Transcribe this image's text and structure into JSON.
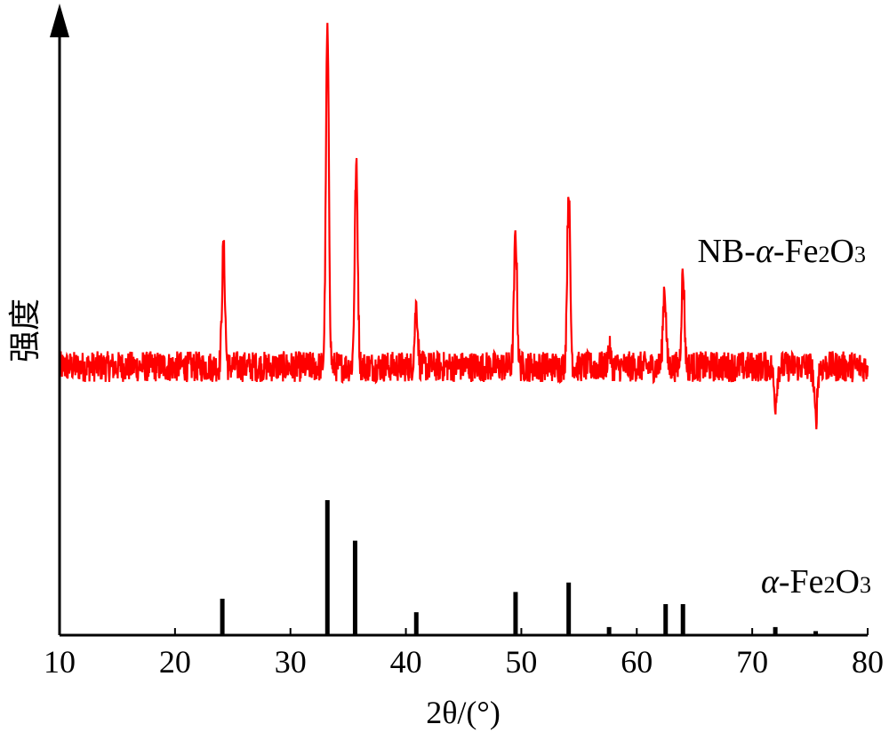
{
  "chart_data": {
    "type": "line",
    "title": "",
    "xlabel": "2θ/(°)",
    "ylabel": "强度",
    "xlim": [
      10,
      80
    ],
    "xticks": [
      "10",
      "20",
      "30",
      "40",
      "50",
      "60",
      "70",
      "80"
    ],
    "y_ticks_shown": false,
    "grid": false,
    "legend": "none",
    "series": [
      {
        "name": "NB-α-Fe2O3",
        "label_parts": {
          "prefix": "NB-",
          "alpha": "α",
          "fe": "-Fe",
          "sub1": "2",
          "o": "O",
          "sub2": "3"
        },
        "color": "#ff0000",
        "style": "noisy-line",
        "baseline_intensity": 0.24,
        "peaks": [
          {
            "x": 24.2,
            "intensity": 0.51
          },
          {
            "x": 33.2,
            "intensity": 1.0
          },
          {
            "x": 35.7,
            "intensity": 0.69
          },
          {
            "x": 40.9,
            "intensity": 0.38
          },
          {
            "x": 49.5,
            "intensity": 0.54
          },
          {
            "x": 54.1,
            "intensity": 0.64
          },
          {
            "x": 57.6,
            "intensity": 0.28
          },
          {
            "x": 62.4,
            "intensity": 0.42
          },
          {
            "x": 64.0,
            "intensity": 0.45
          },
          {
            "x": 72.0,
            "intensity": 0.16
          },
          {
            "x": 75.5,
            "intensity": 0.12
          }
        ]
      },
      {
        "name": "α-Fe2O3",
        "label_parts": {
          "prefix": "",
          "alpha": "α",
          "fe": "-Fe",
          "sub1": "2",
          "o": "O",
          "sub2": "3"
        },
        "color": "#000000",
        "style": "sticks",
        "peaks": [
          {
            "x": 24.1,
            "intensity": 0.27
          },
          {
            "x": 33.2,
            "intensity": 1.0
          },
          {
            "x": 35.6,
            "intensity": 0.7
          },
          {
            "x": 40.9,
            "intensity": 0.17
          },
          {
            "x": 49.5,
            "intensity": 0.32
          },
          {
            "x": 54.1,
            "intensity": 0.39
          },
          {
            "x": 57.6,
            "intensity": 0.06
          },
          {
            "x": 62.5,
            "intensity": 0.23
          },
          {
            "x": 64.0,
            "intensity": 0.23
          },
          {
            "x": 72.0,
            "intensity": 0.06
          },
          {
            "x": 75.5,
            "intensity": 0.03
          }
        ]
      }
    ]
  }
}
